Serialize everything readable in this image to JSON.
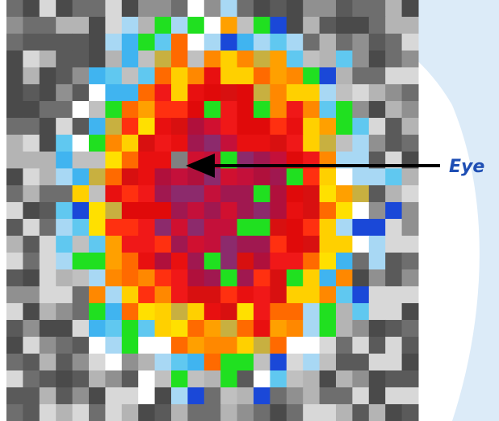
{
  "annotation": {
    "label": "Eye"
  }
}
